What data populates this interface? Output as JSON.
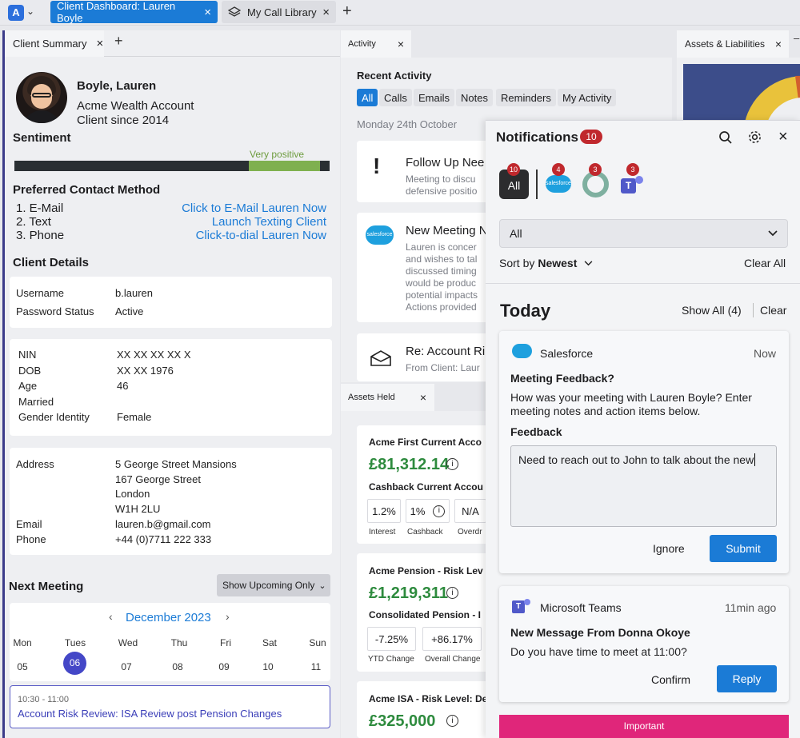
{
  "top_tabs": [
    {
      "label": "Client Dashboard: Lauren Boyle"
    },
    {
      "label": "My Call Library"
    }
  ],
  "icons": {
    "close": "×",
    "plus": "+",
    "chevron_down": "⌄"
  },
  "left": {
    "tab": "Client Summary",
    "name": "Boyle, Lauren",
    "account": "Acme Wealth Account",
    "since": "Client since 2014",
    "sentiment": {
      "title": "Sentiment",
      "label": "Very positive",
      "value_pct": 74
    },
    "contact": {
      "title": "Preferred Contact Method",
      "items": [
        "1. E-Mail",
        "2. Text",
        "3. Phone"
      ],
      "links": [
        "Click to E-Mail Lauren Now",
        "Launch Texting Client",
        "Click-to-dial Lauren Now"
      ]
    },
    "details_title": "Client Details",
    "group1": [
      [
        "Username",
        "b.lauren"
      ],
      [
        "Password Status",
        "Active"
      ]
    ],
    "group2": [
      [
        "NIN",
        "XX XX XX XX X"
      ],
      [
        "DOB",
        "XX XX 1976"
      ],
      [
        "Age",
        "46"
      ],
      [
        "Married",
        ""
      ],
      [
        "Gender Identity",
        "Female"
      ]
    ],
    "group3": {
      "address_label": "Address",
      "address": [
        "5 George Street Mansions",
        "167 George Street",
        "London",
        "W1H 2LU"
      ],
      "email_label": "Email",
      "email": "lauren.b@gmail.com",
      "phone_label": "Phone",
      "phone": "+44 (0)7711 222 333"
    },
    "meeting": {
      "title": "Next Meeting",
      "filter": "Show Upcoming Only",
      "month": "December 2023",
      "days": [
        "Mon",
        "Tues",
        "Wed",
        "Thu",
        "Fri",
        "Sat",
        "Sun"
      ],
      "dates": [
        "05",
        "06",
        "07",
        "08",
        "09",
        "10",
        "11"
      ],
      "selected_index": 1,
      "time": "10:30 - 11:00",
      "event": "Account Risk Review: ISA Review post Pension Changes"
    }
  },
  "activity": {
    "tab": "Activity",
    "title": "Recent Activity",
    "filters": [
      "All",
      "Calls",
      "Emails",
      "Notes",
      "Reminders",
      "My Activity"
    ],
    "date": "Monday 24th October",
    "items": [
      {
        "title": "Follow Up Nee",
        "lines": [
          "Meeting to discu",
          "defensive positio"
        ]
      },
      {
        "title": "New Meeting N",
        "lines": [
          "Lauren is concer",
          "and wishes to tal",
          "discussed timing",
          "would be produc",
          "potential impacts",
          "Actions provided"
        ]
      },
      {
        "title": "Re: Account Ri",
        "lines": [
          "From Client: Laur"
        ]
      }
    ],
    "salesforce_text": "salesforce"
  },
  "assets": {
    "tab": "Assets Held",
    "items": [
      {
        "name": "Acme First Current Acco",
        "value": "£81,312.14",
        "sub": "Cashback Current Accou",
        "stats": [
          [
            "1.2%",
            "Interest"
          ],
          [
            "1%",
            "Cashback"
          ],
          [
            "N/A",
            "Overdr"
          ]
        ]
      },
      {
        "name": "Acme Pension - Risk Lev",
        "value": "£1,219,311",
        "sub": "Consolidated Pension - I",
        "stats": [
          [
            "-7.25%",
            "YTD Change"
          ],
          [
            "+86.17%",
            "Overall Change"
          ]
        ]
      },
      {
        "name": "Acme ISA - Risk Level: De",
        "value": "£325,000"
      }
    ]
  },
  "right_tab": "Assets & Liabilities",
  "notifications": {
    "title": "Notifications",
    "count": "10",
    "apps": [
      {
        "label": "All",
        "count": "10"
      },
      {
        "label": "salesforce",
        "count": "4"
      },
      {
        "label": "other",
        "count": "3"
      },
      {
        "label": "teams",
        "count": "3"
      }
    ],
    "select_value": "All",
    "sort_prefix": "Sort by",
    "sort_value": "Newest",
    "clear_all": "Clear All",
    "today": "Today",
    "show_all": "Show All (4)",
    "clear": "Clear",
    "card1": {
      "app": "Salesforce",
      "time": "Now",
      "title": "Meeting Feedback?",
      "body": "How was your meeting with Lauren Boyle? Enter meeting notes and action items below.",
      "feedback_label": "Feedback",
      "feedback_value": "Need to reach out to John to talk about the new",
      "ignore": "Ignore",
      "submit": "Submit"
    },
    "card2": {
      "app": "Microsoft Teams",
      "time": "11min ago",
      "title": "New Message From Donna Okoye",
      "body": "Do you have time to meet at 11:00?",
      "confirm": "Confirm",
      "reply": "Reply"
    },
    "important": "Important"
  }
}
